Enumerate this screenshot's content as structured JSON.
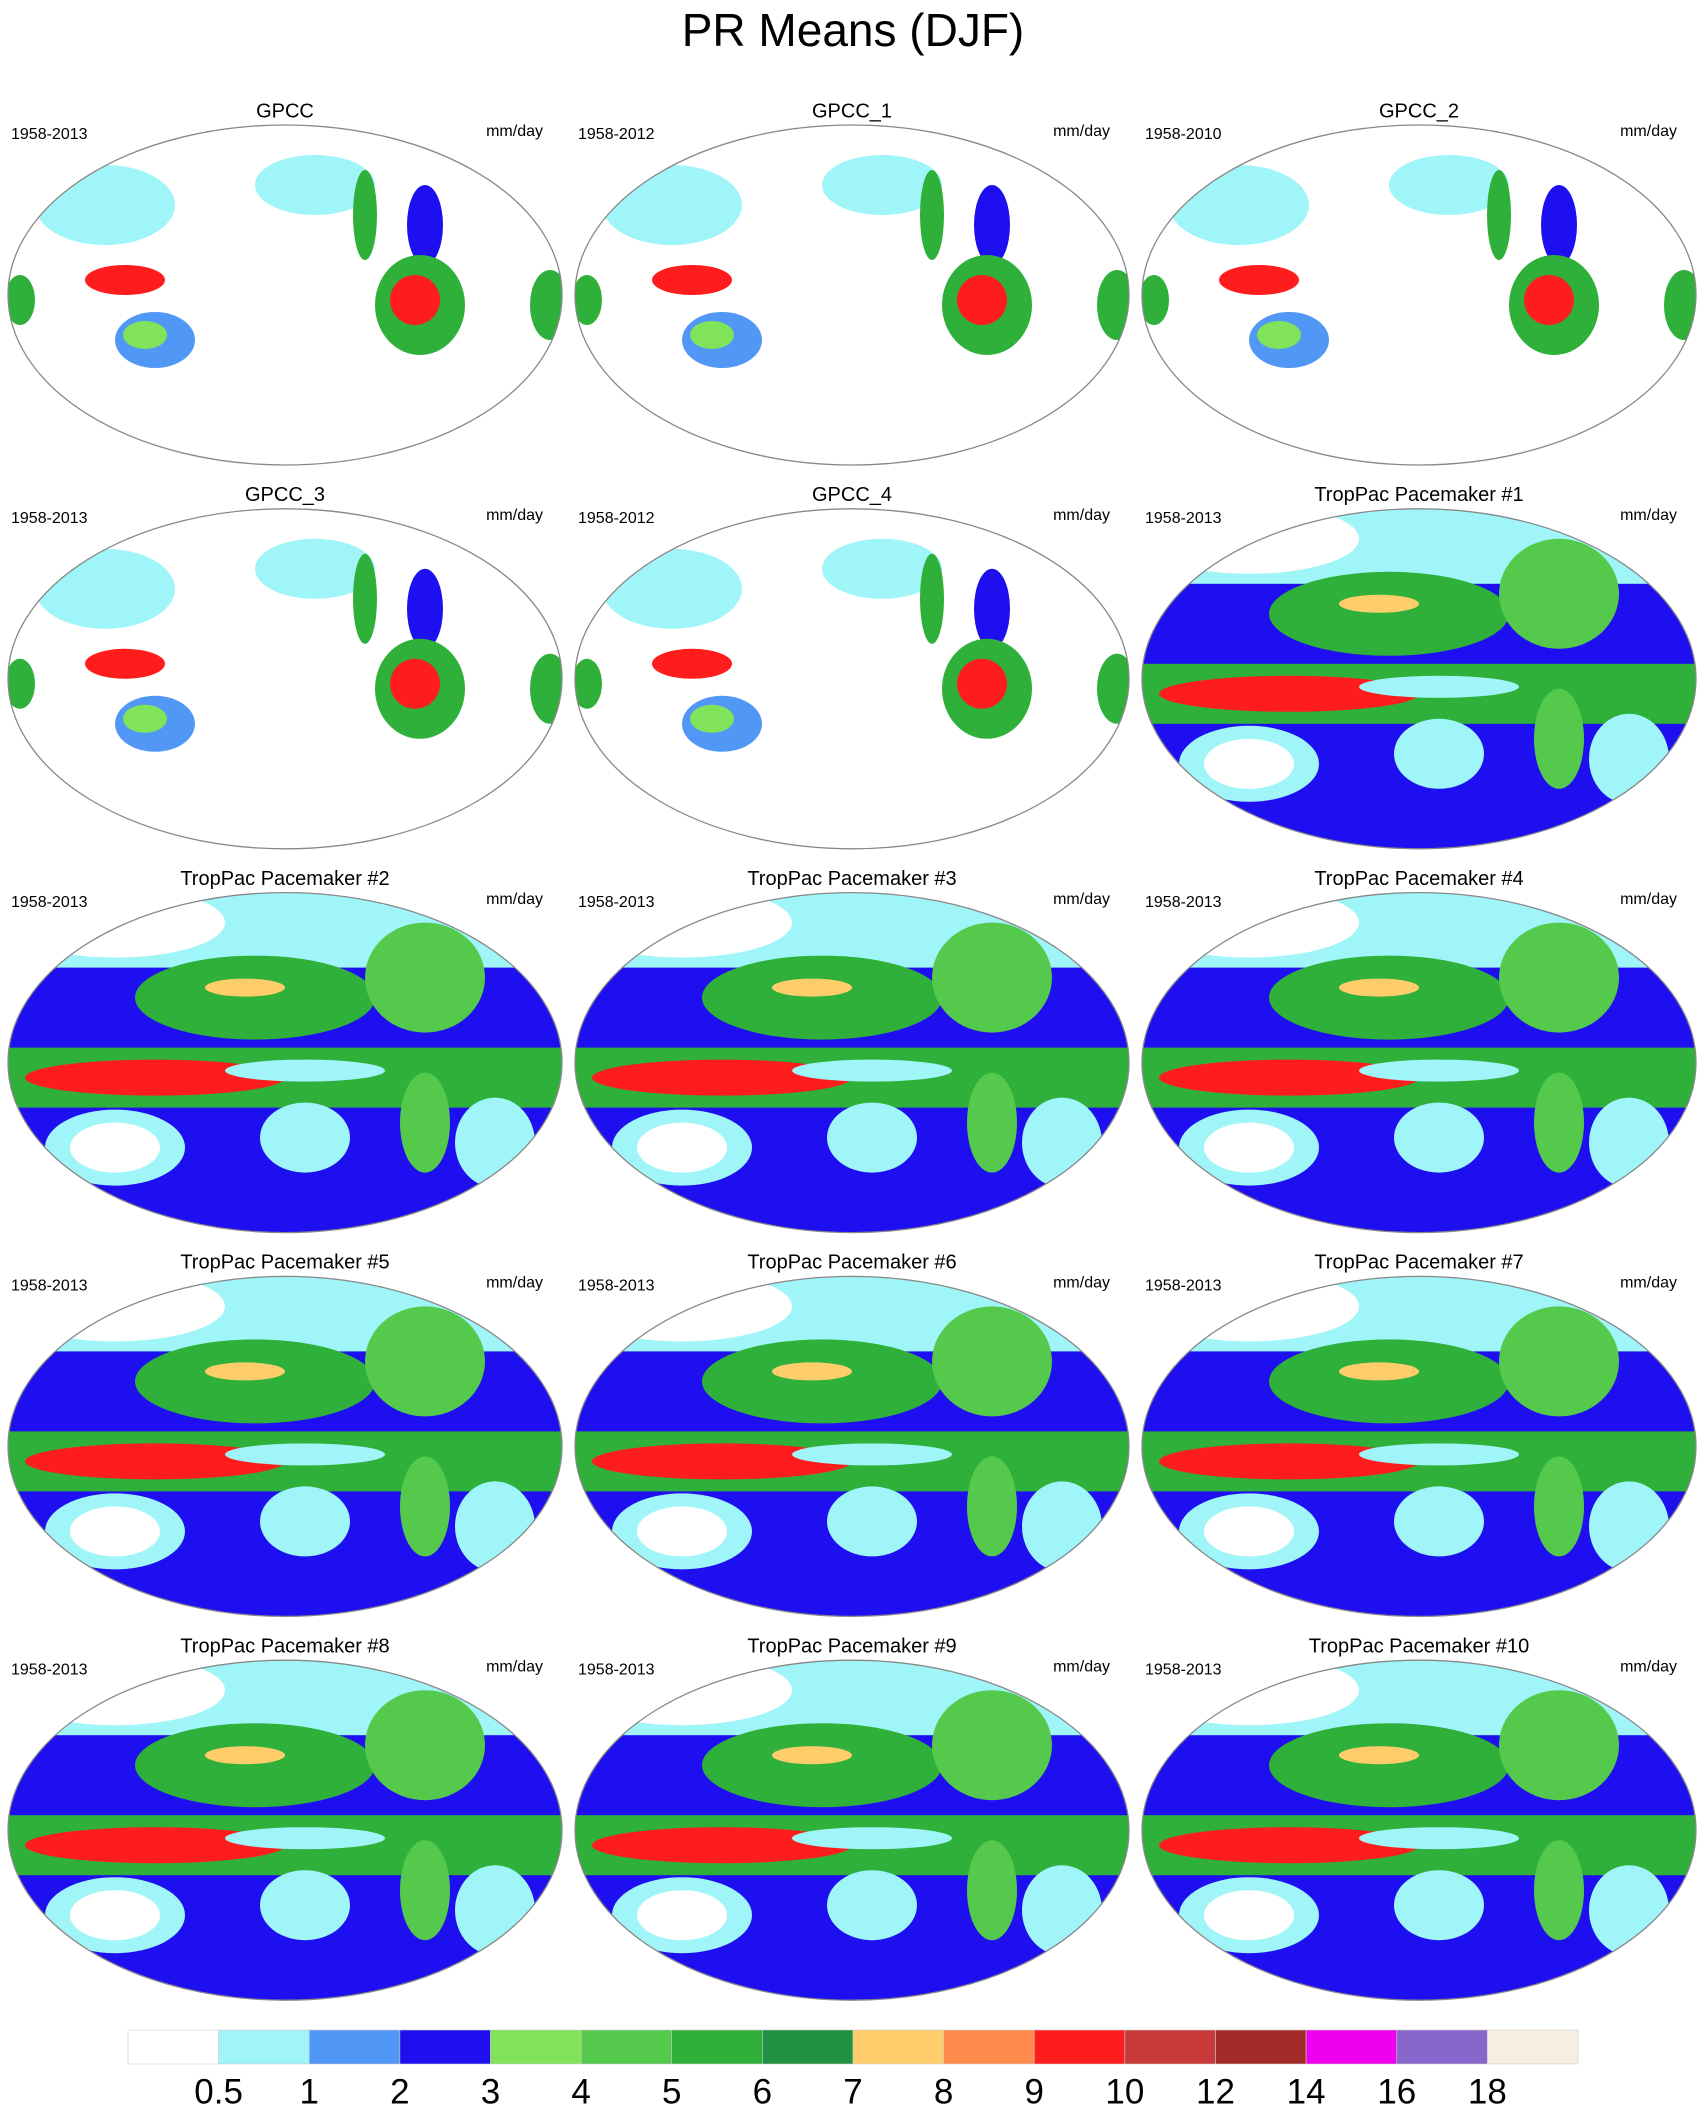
{
  "title": "PR Means (DJF)",
  "panels": [
    {
      "title": "GPCC",
      "period": "1958-2013",
      "units": "mm/day"
    },
    {
      "title": "GPCC_1",
      "period": "1958-2012",
      "units": "mm/day"
    },
    {
      "title": "GPCC_2",
      "period": "1958-2010",
      "units": "mm/day"
    },
    {
      "title": "GPCC_3",
      "period": "1958-2013",
      "units": "mm/day"
    },
    {
      "title": "GPCC_4",
      "period": "1958-2012",
      "units": "mm/day"
    },
    {
      "title": "TropPac Pacemaker #1",
      "period": "1958-2013",
      "units": "mm/day"
    },
    {
      "title": "TropPac Pacemaker #2",
      "period": "1958-2013",
      "units": "mm/day"
    },
    {
      "title": "TropPac Pacemaker #3",
      "period": "1958-2013",
      "units": "mm/day"
    },
    {
      "title": "TropPac Pacemaker #4",
      "period": "1958-2013",
      "units": "mm/day"
    },
    {
      "title": "TropPac Pacemaker #5",
      "period": "1958-2013",
      "units": "mm/day"
    },
    {
      "title": "TropPac Pacemaker #6",
      "period": "1958-2013",
      "units": "mm/day"
    },
    {
      "title": "TropPac Pacemaker #7",
      "period": "1958-2013",
      "units": "mm/day"
    },
    {
      "title": "TropPac Pacemaker #8",
      "period": "1958-2013",
      "units": "mm/day"
    },
    {
      "title": "TropPac Pacemaker #9",
      "period": "1958-2013",
      "units": "mm/day"
    },
    {
      "title": "TropPac Pacemaker #10",
      "period": "1958-2013",
      "units": "mm/day"
    }
  ],
  "colorbar": {
    "levels": [
      0.5,
      1,
      2,
      3,
      4,
      5,
      6,
      7,
      8,
      9,
      10,
      12,
      14,
      16,
      18
    ],
    "colors": [
      "#ffffff",
      "#9ff5f8",
      "#5197f5",
      "#1e0ff0",
      "#80e35a",
      "#55c94b",
      "#2fb03a",
      "#1f9140",
      "#ffce6b",
      "#ff8c4d",
      "#ff1c1c",
      "#c83a3a",
      "#a52a2a",
      "#ee00ee",
      "#8866cc",
      "#f8ede3"
    ]
  }
}
